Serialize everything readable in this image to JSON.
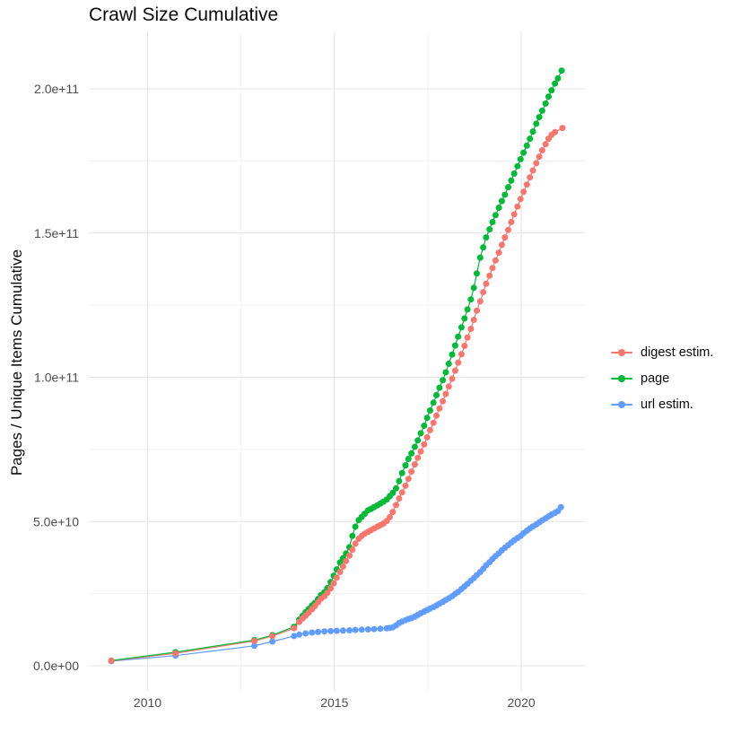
{
  "chart_data": {
    "type": "scatter",
    "title": "Crawl Size Cumulative",
    "xlabel": "",
    "ylabel": "Pages / Unique Items Cumulative",
    "value_unit": "pages (value numbers are billions, 1e9)",
    "xlim": [
      2008.45,
      2021.65
    ],
    "ylim_billions": [
      -8.5,
      220
    ],
    "grid": "on",
    "legend_position": "right",
    "x_ticks": [
      {
        "v": 2010,
        "label": "2010"
      },
      {
        "v": 2015,
        "label": "2015"
      },
      {
        "v": 2020,
        "label": "2020"
      }
    ],
    "x_minor_ticks": [
      2012.5,
      2017.5
    ],
    "y_ticks": [
      {
        "v": 0,
        "label": "0.0e+00"
      },
      {
        "v": 50,
        "label": "5.0e+10"
      },
      {
        "v": 100,
        "label": "1.0e+11"
      },
      {
        "v": 150,
        "label": "1.5e+11"
      },
      {
        "v": 200,
        "label": "2.0e+11"
      }
    ],
    "y_minor_ticks": [
      25,
      75,
      125,
      175
    ],
    "series": [
      {
        "name": "digest estim.",
        "color": "#F8766D",
        "points": [
          [
            2009.03,
            1.7
          ],
          [
            2010.75,
            4.3
          ],
          [
            2012.86,
            8.6
          ],
          [
            2013.34,
            10.3
          ],
          [
            2013.92,
            13.0
          ],
          [
            2014.06,
            15.2
          ],
          [
            2014.15,
            16.4
          ],
          [
            2014.23,
            17.4
          ],
          [
            2014.31,
            18.4
          ],
          [
            2014.4,
            19.6
          ],
          [
            2014.48,
            20.7
          ],
          [
            2014.56,
            22.0
          ],
          [
            2014.64,
            23.2
          ],
          [
            2014.73,
            24.1
          ],
          [
            2014.81,
            25.3
          ],
          [
            2014.9,
            26.8
          ],
          [
            2014.98,
            28.6
          ],
          [
            2015.06,
            30.5
          ],
          [
            2015.15,
            32.5
          ],
          [
            2015.23,
            34.4
          ],
          [
            2015.31,
            36.3
          ],
          [
            2015.4,
            38.2
          ],
          [
            2015.48,
            40.2
          ],
          [
            2015.56,
            42.3
          ],
          [
            2015.65,
            44.0
          ],
          [
            2015.73,
            45.0
          ],
          [
            2015.81,
            45.8
          ],
          [
            2015.9,
            46.4
          ],
          [
            2015.98,
            47.0
          ],
          [
            2016.06,
            47.6
          ],
          [
            2016.15,
            48.2
          ],
          [
            2016.23,
            48.7
          ],
          [
            2016.31,
            49.3
          ],
          [
            2016.4,
            50.2
          ],
          [
            2016.48,
            51.5
          ],
          [
            2016.56,
            53.3
          ],
          [
            2016.65,
            55.7
          ],
          [
            2016.73,
            58.0
          ],
          [
            2016.81,
            60.1
          ],
          [
            2016.9,
            62.4
          ],
          [
            2016.98,
            64.8
          ],
          [
            2017.06,
            67.3
          ],
          [
            2017.15,
            69.8
          ],
          [
            2017.23,
            72.1
          ],
          [
            2017.31,
            74.3
          ],
          [
            2017.4,
            76.7
          ],
          [
            2017.48,
            79.2
          ],
          [
            2017.56,
            81.7
          ],
          [
            2017.65,
            84.2
          ],
          [
            2017.73,
            86.7
          ],
          [
            2017.81,
            89.2
          ],
          [
            2017.9,
            91.7
          ],
          [
            2017.98,
            94.2
          ],
          [
            2018.06,
            96.8
          ],
          [
            2018.15,
            99.5
          ],
          [
            2018.23,
            102.3
          ],
          [
            2018.31,
            105.1
          ],
          [
            2018.4,
            108.0
          ],
          [
            2018.48,
            110.9
          ],
          [
            2018.56,
            113.8
          ],
          [
            2018.65,
            116.8
          ],
          [
            2018.73,
            119.9
          ],
          [
            2018.81,
            123.1
          ],
          [
            2018.9,
            126.3
          ],
          [
            2018.98,
            129.5
          ],
          [
            2019.06,
            132.4
          ],
          [
            2019.15,
            135.2
          ],
          [
            2019.23,
            137.9
          ],
          [
            2019.31,
            140.5
          ],
          [
            2019.4,
            143.2
          ],
          [
            2019.48,
            145.9
          ],
          [
            2019.56,
            148.5
          ],
          [
            2019.65,
            151.1
          ],
          [
            2019.73,
            153.8
          ],
          [
            2019.81,
            156.5
          ],
          [
            2019.9,
            159.2
          ],
          [
            2019.98,
            161.8
          ],
          [
            2020.06,
            164.3
          ],
          [
            2020.15,
            166.8
          ],
          [
            2020.23,
            169.3
          ],
          [
            2020.31,
            171.7
          ],
          [
            2020.4,
            174.2
          ],
          [
            2020.48,
            176.5
          ],
          [
            2020.56,
            178.7
          ],
          [
            2020.65,
            180.8
          ],
          [
            2020.73,
            182.7
          ],
          [
            2020.81,
            184.0
          ],
          [
            2020.9,
            185.0
          ],
          [
            2021.1,
            186.4
          ]
        ]
      },
      {
        "name": "page",
        "color": "#00BA38",
        "points": [
          [
            2009.03,
            1.8
          ],
          [
            2010.75,
            4.7
          ],
          [
            2012.86,
            8.9
          ],
          [
            2013.34,
            10.6
          ],
          [
            2013.92,
            13.5
          ],
          [
            2014.06,
            16.0
          ],
          [
            2014.15,
            17.3
          ],
          [
            2014.23,
            18.6
          ],
          [
            2014.31,
            19.7
          ],
          [
            2014.4,
            20.9
          ],
          [
            2014.48,
            21.8
          ],
          [
            2014.56,
            23.1
          ],
          [
            2014.64,
            24.5
          ],
          [
            2014.73,
            25.5
          ],
          [
            2014.81,
            26.9
          ],
          [
            2014.9,
            29.0
          ],
          [
            2014.98,
            31.2
          ],
          [
            2015.06,
            33.4
          ],
          [
            2015.15,
            35.8
          ],
          [
            2015.23,
            37.3
          ],
          [
            2015.31,
            38.9
          ],
          [
            2015.4,
            41.1
          ],
          [
            2015.48,
            45.0
          ],
          [
            2015.56,
            48.2
          ],
          [
            2015.65,
            50.5
          ],
          [
            2015.73,
            51.6
          ],
          [
            2015.81,
            52.7
          ],
          [
            2015.9,
            53.9
          ],
          [
            2015.98,
            54.4
          ],
          [
            2016.06,
            55.0
          ],
          [
            2016.15,
            55.6
          ],
          [
            2016.23,
            56.2
          ],
          [
            2016.31,
            56.9
          ],
          [
            2016.4,
            57.6
          ],
          [
            2016.48,
            58.8
          ],
          [
            2016.56,
            59.9
          ],
          [
            2016.65,
            61.5
          ],
          [
            2016.73,
            64.0
          ],
          [
            2016.81,
            66.8
          ],
          [
            2016.9,
            69.5
          ],
          [
            2016.98,
            71.7
          ],
          [
            2017.06,
            73.6
          ],
          [
            2017.15,
            75.9
          ],
          [
            2017.23,
            78.1
          ],
          [
            2017.31,
            80.6
          ],
          [
            2017.4,
            83.2
          ],
          [
            2017.48,
            85.9
          ],
          [
            2017.56,
            88.5
          ],
          [
            2017.65,
            91.2
          ],
          [
            2017.73,
            93.8
          ],
          [
            2017.81,
            96.4
          ],
          [
            2017.9,
            99.0
          ],
          [
            2017.98,
            101.7
          ],
          [
            2018.06,
            104.7
          ],
          [
            2018.15,
            107.9
          ],
          [
            2018.23,
            111.0
          ],
          [
            2018.31,
            114.1
          ],
          [
            2018.4,
            117.3
          ],
          [
            2018.48,
            120.4
          ],
          [
            2018.56,
            123.5
          ],
          [
            2018.65,
            127.0
          ],
          [
            2018.73,
            131.0
          ],
          [
            2018.81,
            136.0
          ],
          [
            2018.9,
            141.5
          ],
          [
            2018.98,
            145.0
          ],
          [
            2019.06,
            148.5
          ],
          [
            2019.15,
            151.3
          ],
          [
            2019.23,
            153.8
          ],
          [
            2019.31,
            156.2
          ],
          [
            2019.4,
            158.8
          ],
          [
            2019.48,
            161.1
          ],
          [
            2019.56,
            163.3
          ],
          [
            2019.65,
            165.9
          ],
          [
            2019.73,
            168.2
          ],
          [
            2019.81,
            170.6
          ],
          [
            2019.9,
            173.2
          ],
          [
            2019.98,
            175.6
          ],
          [
            2020.06,
            177.9
          ],
          [
            2020.15,
            180.3
          ],
          [
            2020.23,
            182.7
          ],
          [
            2020.31,
            185.2
          ],
          [
            2020.4,
            187.9
          ],
          [
            2020.48,
            190.2
          ],
          [
            2020.56,
            192.4
          ],
          [
            2020.65,
            194.9
          ],
          [
            2020.73,
            197.3
          ],
          [
            2020.81,
            199.5
          ],
          [
            2020.9,
            201.8
          ],
          [
            2020.98,
            203.6
          ],
          [
            2021.08,
            206.3
          ]
        ]
      },
      {
        "name": "url estim.",
        "color": "#619CFF",
        "points": [
          [
            2009.03,
            1.6
          ],
          [
            2010.75,
            3.5
          ],
          [
            2012.86,
            6.9
          ],
          [
            2013.34,
            8.4
          ],
          [
            2013.92,
            10.3
          ],
          [
            2014.06,
            10.8
          ],
          [
            2014.23,
            11.2
          ],
          [
            2014.4,
            11.5
          ],
          [
            2014.56,
            11.7
          ],
          [
            2014.73,
            11.9
          ],
          [
            2014.9,
            12.0
          ],
          [
            2015.06,
            12.1
          ],
          [
            2015.23,
            12.2
          ],
          [
            2015.4,
            12.3
          ],
          [
            2015.56,
            12.4
          ],
          [
            2015.73,
            12.5
          ],
          [
            2015.9,
            12.6
          ],
          [
            2016.06,
            12.7
          ],
          [
            2016.23,
            12.8
          ],
          [
            2016.4,
            13.0
          ],
          [
            2016.48,
            13.1
          ],
          [
            2016.56,
            13.3
          ],
          [
            2016.65,
            14.0
          ],
          [
            2016.73,
            14.8
          ],
          [
            2016.81,
            15.3
          ],
          [
            2016.9,
            15.8
          ],
          [
            2016.98,
            16.2
          ],
          [
            2017.06,
            16.5
          ],
          [
            2017.15,
            17.0
          ],
          [
            2017.23,
            17.6
          ],
          [
            2017.31,
            18.2
          ],
          [
            2017.4,
            18.8
          ],
          [
            2017.48,
            19.3
          ],
          [
            2017.56,
            19.8
          ],
          [
            2017.65,
            20.3
          ],
          [
            2017.73,
            20.9
          ],
          [
            2017.81,
            21.5
          ],
          [
            2017.9,
            22.1
          ],
          [
            2017.98,
            22.8
          ],
          [
            2018.06,
            23.4
          ],
          [
            2018.15,
            24.1
          ],
          [
            2018.23,
            24.9
          ],
          [
            2018.31,
            25.6
          ],
          [
            2018.4,
            26.6
          ],
          [
            2018.48,
            27.5
          ],
          [
            2018.56,
            28.4
          ],
          [
            2018.65,
            29.5
          ],
          [
            2018.73,
            30.4
          ],
          [
            2018.81,
            31.4
          ],
          [
            2018.9,
            32.5
          ],
          [
            2018.98,
            33.6
          ],
          [
            2019.06,
            34.8
          ],
          [
            2019.15,
            35.9
          ],
          [
            2019.23,
            37.0
          ],
          [
            2019.31,
            38.0
          ],
          [
            2019.4,
            39.0
          ],
          [
            2019.48,
            40.0
          ],
          [
            2019.56,
            40.9
          ],
          [
            2019.65,
            41.8
          ],
          [
            2019.73,
            42.7
          ],
          [
            2019.81,
            43.5
          ],
          [
            2019.9,
            44.3
          ],
          [
            2019.98,
            45.0
          ],
          [
            2020.06,
            45.9
          ],
          [
            2020.15,
            46.8
          ],
          [
            2020.23,
            47.6
          ],
          [
            2020.31,
            48.3
          ],
          [
            2020.4,
            49.0
          ],
          [
            2020.48,
            49.7
          ],
          [
            2020.56,
            50.4
          ],
          [
            2020.65,
            51.1
          ],
          [
            2020.73,
            51.8
          ],
          [
            2020.81,
            52.4
          ],
          [
            2020.9,
            53.0
          ],
          [
            2020.98,
            53.6
          ],
          [
            2021.06,
            55.0
          ]
        ]
      }
    ],
    "style": {
      "grid_major_color": "#E4E4E4",
      "grid_minor_color": "#F1F1F1",
      "tick_label_color": "#4D4D4D",
      "text_color": "#0a0a0a",
      "background": "#ffffff",
      "dot_radius": 3.5,
      "line_width": 1.2
    }
  },
  "legend": {
    "items": [
      {
        "label": "digest estim."
      },
      {
        "label": "page"
      },
      {
        "label": "url estim."
      }
    ]
  }
}
